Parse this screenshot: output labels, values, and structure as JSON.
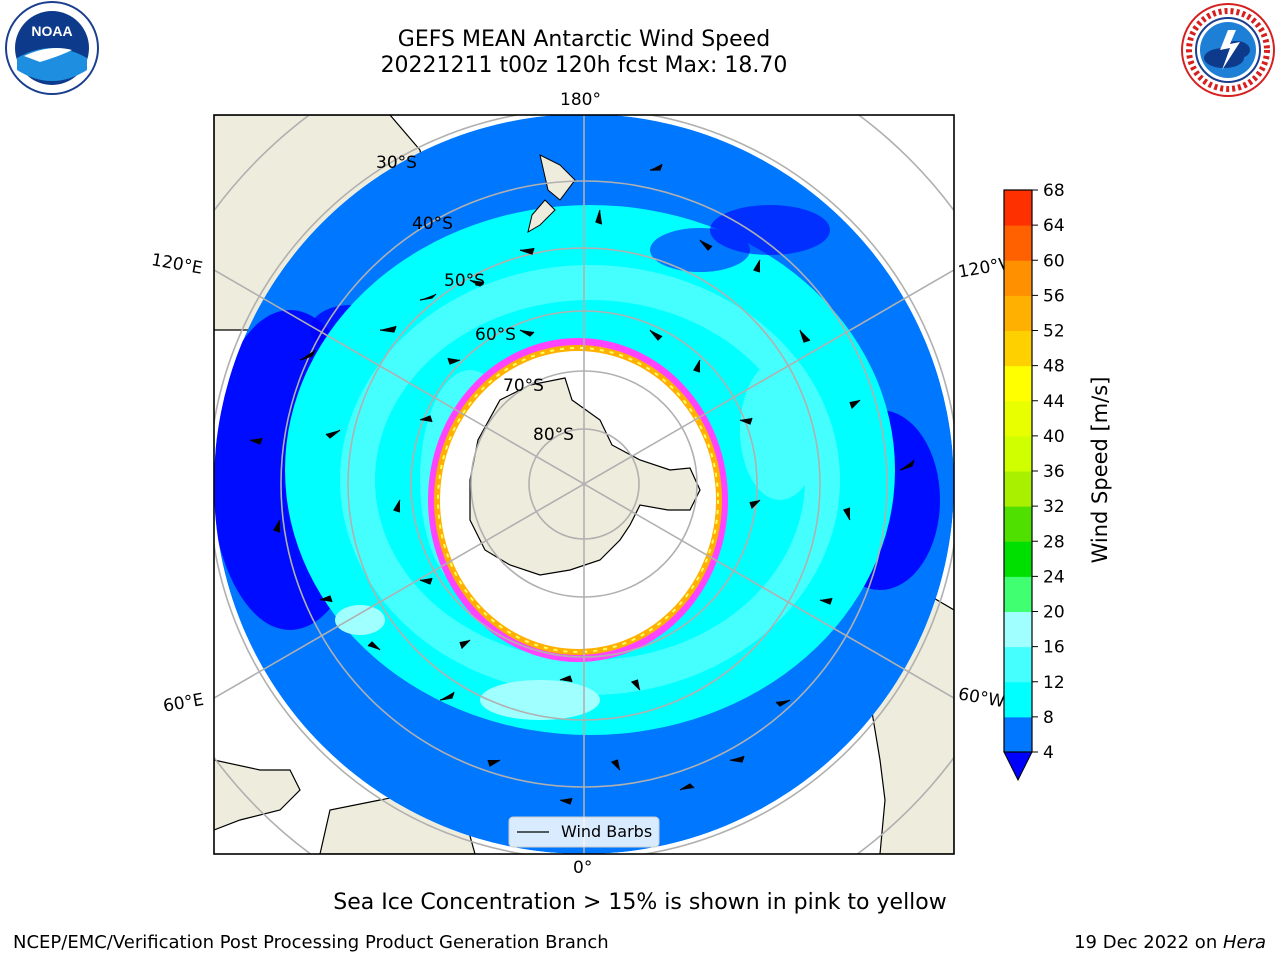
{
  "header": {
    "title_line1": "GEFS MEAN Antarctic Wind Speed",
    "title_line2": "20221211 t00z 120h fcst   Max: 18.70"
  },
  "logos": {
    "left": "noaa-logo",
    "left_text": "NOAA",
    "right": "nws-logo",
    "right_text": "NATIONAL WEATHER SERVICE"
  },
  "map": {
    "projection": "south-polar-stereographic",
    "longitude_labels": [
      "180°",
      "120°E",
      "120°W",
      "60°E",
      "60°W",
      "0°"
    ],
    "latitude_labels": [
      "30°S",
      "40°S",
      "50°S",
      "60°S",
      "70°S",
      "80°S"
    ],
    "legend_label": "Wind Barbs",
    "colors": {
      "land": "#eeecdc",
      "ice": "#ffffff",
      "ice_edge": [
        "#ff44ff",
        "#ffb000",
        "#ffff60"
      ],
      "grid": "#b0b0b0"
    }
  },
  "colorbar": {
    "label": "Wind Speed [m/s]",
    "ticks": [
      "68",
      "64",
      "60",
      "56",
      "52",
      "48",
      "44",
      "40",
      "36",
      "32",
      "28",
      "24",
      "20",
      "16",
      "12",
      "8",
      "4"
    ],
    "colors": [
      "#0000ff",
      "#0077ff",
      "#00ffff",
      "#45ffff",
      "#a0ffff",
      "#40ff70",
      "#00e000",
      "#50e000",
      "#a8f000",
      "#d0ff00",
      "#e8ff00",
      "#ffff00",
      "#ffd000",
      "#ffb000",
      "#ff9000",
      "#ff6000",
      "#ff3000",
      "#ff0000"
    ]
  },
  "caption": "Sea Ice Concentration > 15% is shown in pink to yellow",
  "footer": {
    "left": "NCEP/EMC/Verification Post Processing Product Generation Branch",
    "right_prefix": "19 Dec 2022 on ",
    "right_host": "Hera"
  }
}
